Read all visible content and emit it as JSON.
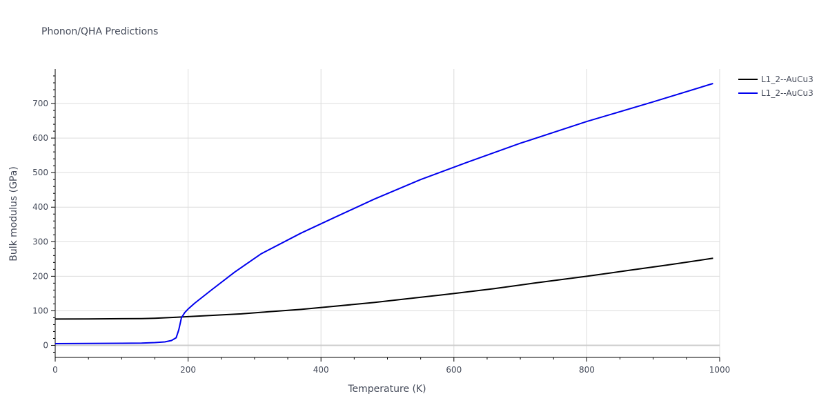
{
  "chart_data": {
    "type": "line",
    "title": "Phonon/QHA Predictions",
    "xlabel": "Temperature (K)",
    "ylabel": "Bulk modulus (GPa)",
    "xlim": [
      0,
      1000
    ],
    "ylim": [
      -35,
      800
    ],
    "x_ticks": [
      0,
      200,
      400,
      600,
      800,
      1000
    ],
    "y_ticks": [
      0,
      100,
      200,
      300,
      400,
      500,
      600,
      700
    ],
    "grid": true,
    "legend_position": "top-right",
    "series": [
      {
        "name": "L1_2--AuCu3",
        "color": "#000000",
        "x": [
          0,
          50,
          100,
          130,
          150,
          180,
          200,
          240,
          280,
          320,
          370,
          420,
          480,
          540,
          600,
          660,
          720,
          800,
          860,
          920,
          990
        ],
        "y": [
          76,
          76.5,
          77,
          77.5,
          78.5,
          81,
          83,
          87,
          91,
          97,
          104,
          113,
          124,
          137,
          150,
          164,
          180,
          200,
          216,
          232,
          252
        ]
      },
      {
        "name": "L1_2--AuCu3",
        "color": "#0000ee",
        "x": [
          0,
          50,
          100,
          130,
          150,
          165,
          175,
          182,
          186,
          190,
          195,
          200,
          210,
          235,
          270,
          310,
          370,
          420,
          480,
          550,
          620,
          700,
          800,
          900,
          990
        ],
        "y": [
          5,
          5.5,
          6,
          6.5,
          8,
          10,
          14,
          22,
          45,
          80,
          95,
          105,
          122,
          160,
          212,
          265,
          325,
          370,
          423,
          480,
          530,
          585,
          648,
          705,
          758
        ]
      }
    ]
  }
}
